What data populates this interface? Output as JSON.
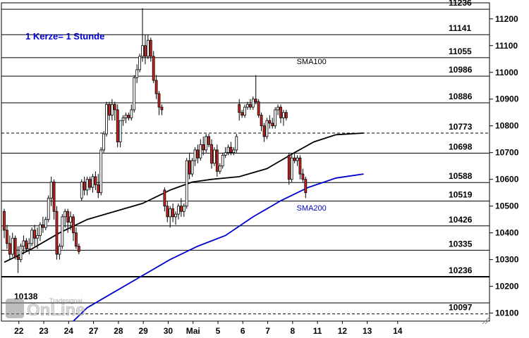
{
  "chart_data": {
    "type": "candlestick",
    "subtitle": "1 Kerze= 1 Stunde",
    "ylim": [
      10070,
      11260
    ],
    "y_ticks": [
      10100,
      10200,
      10300,
      10400,
      10500,
      10600,
      10700,
      10800,
      10900,
      11000,
      11100,
      11200
    ],
    "x_ticks": [
      {
        "label": "22",
        "idx": 3
      },
      {
        "label": "23",
        "idx": 12
      },
      {
        "label": "24",
        "idx": 21
      },
      {
        "label": "27",
        "idx": 30
      },
      {
        "label": "28",
        "idx": 39
      },
      {
        "label": "29",
        "idx": 48
      },
      {
        "label": "30",
        "idx": 57
      },
      {
        "label": "Mai",
        "idx": 66
      },
      {
        "label": "5",
        "idx": 75
      },
      {
        "label": "6",
        "idx": 84
      },
      {
        "label": "7",
        "idx": 93
      },
      {
        "label": "8",
        "idx": 102
      },
      {
        "label": "11",
        "idx": 111
      },
      {
        "label": "12",
        "idx": 120
      },
      {
        "label": "13",
        "idx": 129
      },
      {
        "label": "14",
        "idx": 140
      }
    ],
    "levels": [
      {
        "value": 11236,
        "label": "11236",
        "style": "solid",
        "weight": 1
      },
      {
        "value": 11141,
        "label": "11141",
        "style": "solid",
        "weight": 1
      },
      {
        "value": 11055,
        "label": "11055",
        "style": "solid",
        "weight": 1
      },
      {
        "value": 10986,
        "label": "10986",
        "style": "solid",
        "weight": 1
      },
      {
        "value": 10886,
        "label": "10886",
        "style": "solid",
        "weight": 1
      },
      {
        "value": 10773,
        "label": "10773",
        "style": "dashed",
        "weight": 1
      },
      {
        "value": 10698,
        "label": "10698",
        "style": "solid",
        "weight": 1
      },
      {
        "value": 10588,
        "label": "10588",
        "style": "solid",
        "weight": 1
      },
      {
        "value": 10519,
        "label": "10519",
        "style": "solid",
        "weight": 1
      },
      {
        "value": 10426,
        "label": "10426",
        "style": "solid",
        "weight": 1
      },
      {
        "value": 10335,
        "label": "10335",
        "style": "solid",
        "weight": 1
      },
      {
        "value": 10236,
        "label": "10236",
        "style": "solid",
        "weight": 2
      },
      {
        "value": 10138,
        "label": "10138",
        "style": "solid",
        "weight": 1
      },
      {
        "value": 10097,
        "label": "10097",
        "style": "dashed",
        "weight": 1
      }
    ],
    "candles": [
      [
        10480,
        10490,
        10380,
        10410
      ],
      [
        10410,
        10430,
        10340,
        10360
      ],
      [
        10360,
        10390,
        10300,
        10320
      ],
      [
        10320,
        10400,
        10310,
        10380
      ],
      [
        10380,
        10390,
        10300,
        10310
      ],
      [
        10310,
        10350,
        10250,
        10300
      ],
      [
        10300,
        10360,
        10290,
        10350
      ],
      [
        10350,
        10390,
        10320,
        10370
      ],
      [
        10370,
        10380,
        10330,
        10340
      ],
      [
        10340,
        10380,
        10320,
        10360
      ],
      [
        10360,
        10420,
        10350,
        10410
      ],
      [
        10410,
        10430,
        10350,
        10380
      ],
      [
        10380,
        10420,
        10340,
        10390
      ],
      [
        10390,
        10440,
        10370,
        10430
      ],
      [
        10430,
        10460,
        10400,
        10420
      ],
      [
        10420,
        10460,
        10410,
        10450
      ],
      [
        10450,
        10540,
        10440,
        10530
      ],
      [
        10530,
        10610,
        10500,
        10590
      ],
      [
        10590,
        10600,
        10450,
        10480
      ],
      [
        10480,
        10500,
        10300,
        10320
      ],
      [
        10320,
        10360,
        10300,
        10350
      ],
      [
        10350,
        10470,
        10340,
        10460
      ],
      [
        10460,
        10490,
        10420,
        10480
      ],
      [
        10480,
        10490,
        10400,
        10440
      ],
      [
        10440,
        10480,
        10410,
        10460
      ],
      [
        10460,
        10470,
        10370,
        10400
      ],
      [
        10400,
        10420,
        10340,
        10350
      ],
      [
        10350,
        10360,
        10320,
        10330
      ],
      [
        10530,
        10600,
        10520,
        10590
      ],
      [
        10590,
        10610,
        10540,
        10560
      ],
      [
        10560,
        10610,
        10540,
        10600
      ],
      [
        10600,
        10610,
        10560,
        10570
      ],
      [
        10570,
        10620,
        10550,
        10610
      ],
      [
        10610,
        10630,
        10560,
        10580
      ],
      [
        10580,
        10620,
        10530,
        10550
      ],
      [
        10550,
        10720,
        10540,
        10710
      ],
      [
        10710,
        10780,
        10700,
        10770
      ],
      [
        10770,
        10890,
        10760,
        10880
      ],
      [
        10880,
        10890,
        10820,
        10840
      ],
      [
        10840,
        10900,
        10820,
        10880
      ],
      [
        10880,
        10890,
        10820,
        10860
      ],
      [
        10860,
        10880,
        10720,
        10740
      ],
      [
        10740,
        10820,
        10720,
        10820
      ],
      [
        10820,
        10840,
        10800,
        10830
      ],
      [
        10830,
        10850,
        10810,
        10840
      ],
      [
        10840,
        10850,
        10820,
        10830
      ],
      [
        10830,
        10880,
        10820,
        10860
      ],
      [
        10860,
        10990,
        10850,
        10980
      ],
      [
        10980,
        11030,
        10960,
        11010
      ],
      [
        11010,
        11070,
        11000,
        11060
      ],
      [
        11060,
        11240,
        11040,
        11100
      ],
      [
        11100,
        11140,
        11030,
        11060
      ],
      [
        11060,
        11140,
        11050,
        11120
      ],
      [
        11120,
        11130,
        11040,
        11060
      ],
      [
        11060,
        11080,
        10960,
        10970
      ],
      [
        10970,
        10990,
        10900,
        10920
      ],
      [
        10920,
        10930,
        10840,
        10870
      ],
      [
        10870,
        10880,
        10840,
        10860
      ],
      [
        10560,
        10570,
        10480,
        10500
      ],
      [
        10500,
        10520,
        10440,
        10460
      ],
      [
        10460,
        10500,
        10420,
        10490
      ],
      [
        10490,
        10510,
        10440,
        10460
      ],
      [
        10460,
        10480,
        10430,
        10470
      ],
      [
        10470,
        10510,
        10450,
        10500
      ],
      [
        10500,
        10530,
        10460,
        10480
      ],
      [
        10480,
        10510,
        10460,
        10500
      ],
      [
        10500,
        10680,
        10490,
        10670
      ],
      [
        10670,
        10700,
        10600,
        10620
      ],
      [
        10620,
        10680,
        10610,
        10670
      ],
      [
        10670,
        10720,
        10650,
        10710
      ],
      [
        10710,
        10730,
        10660,
        10680
      ],
      [
        10680,
        10750,
        10670,
        10730
      ],
      [
        10730,
        10760,
        10690,
        10710
      ],
      [
        10710,
        10770,
        10700,
        10760
      ],
      [
        10760,
        10770,
        10720,
        10730
      ],
      [
        10730,
        10750,
        10640,
        10660
      ],
      [
        10660,
        10720,
        10650,
        10710
      ],
      [
        10710,
        10730,
        10610,
        10630
      ],
      [
        10630,
        10660,
        10620,
        10650
      ],
      [
        10650,
        10700,
        10640,
        10690
      ],
      [
        10690,
        10720,
        10680,
        10700
      ],
      [
        10700,
        10730,
        10690,
        10720
      ],
      [
        10720,
        10740,
        10690,
        10700
      ],
      [
        10700,
        10720,
        10690,
        10710
      ],
      [
        10710,
        10770,
        10700,
        10760
      ],
      [
        10880,
        10900,
        10820,
        10850
      ],
      [
        10850,
        10860,
        10830,
        10840
      ],
      [
        10840,
        10880,
        10830,
        10870
      ],
      [
        10870,
        10890,
        10860,
        10880
      ],
      [
        10880,
        10900,
        10860,
        10870
      ],
      [
        10870,
        10910,
        10860,
        10900
      ],
      [
        10900,
        10990,
        10880,
        10890
      ],
      [
        10890,
        10900,
        10830,
        10840
      ],
      [
        10840,
        10850,
        10780,
        10800
      ],
      [
        10800,
        10810,
        10740,
        10760
      ],
      [
        10760,
        10830,
        10750,
        10820
      ],
      [
        10820,
        10840,
        10790,
        10810
      ],
      [
        10810,
        10830,
        10790,
        10800
      ],
      [
        10800,
        10870,
        10790,
        10860
      ],
      [
        10860,
        10880,
        10840,
        10870
      ],
      [
        10870,
        10880,
        10810,
        10830
      ],
      [
        10830,
        10860,
        10800,
        10850
      ],
      [
        10850,
        10860,
        10820,
        10830
      ],
      [
        10690,
        10700,
        10580,
        10600
      ],
      [
        10600,
        10690,
        10590,
        10680
      ],
      [
        10680,
        10700,
        10660,
        10670
      ],
      [
        10670,
        10690,
        10650,
        10680
      ],
      [
        10680,
        10690,
        10600,
        10620
      ],
      [
        10620,
        10640,
        10590,
        10600
      ],
      [
        10600,
        10610,
        10530,
        10550
      ]
    ],
    "series": [
      {
        "name": "SMA100",
        "color": "#000000",
        "values": [
          [
            0,
            10290
          ],
          [
            10,
            10340
          ],
          [
            20,
            10400
          ],
          [
            30,
            10450
          ],
          [
            40,
            10480
          ],
          [
            50,
            10510
          ],
          [
            60,
            10560
          ],
          [
            68,
            10590
          ],
          [
            75,
            10600
          ],
          [
            85,
            10610
          ],
          [
            95,
            10640
          ],
          [
            105,
            10700
          ],
          [
            112,
            10740
          ],
          [
            120,
            10767
          ],
          [
            130,
            10773
          ]
        ]
      },
      {
        "name": "SMA200",
        "color": "#0000cc",
        "values": [
          [
            25,
            10070
          ],
          [
            30,
            10120
          ],
          [
            40,
            10180
          ],
          [
            50,
            10240
          ],
          [
            60,
            10300
          ],
          [
            70,
            10350
          ],
          [
            80,
            10390
          ],
          [
            90,
            10460
          ],
          [
            100,
            10520
          ],
          [
            110,
            10570
          ],
          [
            120,
            10605
          ],
          [
            130,
            10620
          ]
        ]
      }
    ],
    "annotations": [
      {
        "text": "SMA100",
        "series": "SMA100"
      },
      {
        "text": "SMA200",
        "series": "SMA200"
      }
    ],
    "grid": false
  },
  "logo": {
    "text": "OnLine",
    "brand": "Tradesignal"
  },
  "colors": {
    "up": "#ffffff",
    "down": "#cc2222",
    "outline": "#000000",
    "sma200": "#0000cc",
    "subtitle": "#0000cc"
  }
}
